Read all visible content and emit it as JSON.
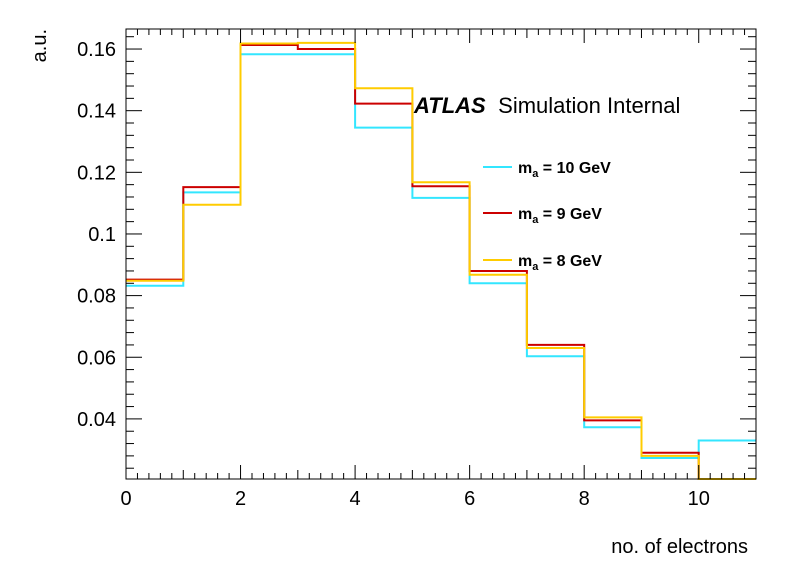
{
  "chart_data": {
    "type": "line",
    "style": "step-histogram",
    "xlabel": "no. of electrons",
    "ylabel": "a.u.",
    "xlim": [
      0,
      11
    ],
    "ylim": [
      0.0205,
      0.1665
    ],
    "x_bin_edges": [
      0,
      1,
      2,
      3,
      4,
      5,
      6,
      7,
      8,
      9,
      10,
      11
    ],
    "x_ticks": [
      0,
      2,
      4,
      6,
      8,
      10
    ],
    "x_tick_labels": [
      "0",
      "2",
      "4",
      "6",
      "8",
      "10"
    ],
    "y_ticks": [
      0.04,
      0.06,
      0.08,
      0.1,
      0.12,
      0.14,
      0.16
    ],
    "y_tick_labels": [
      "0.04",
      "0.06",
      "0.08",
      "0.1",
      "0.12",
      "0.14",
      "0.16"
    ],
    "grid": false,
    "legend_position": "right",
    "annotation": {
      "atlas": "ATLAS",
      "rest": "Simulation Internal"
    },
    "series": [
      {
        "name": "m_a = 10 GeV",
        "label_main": "m",
        "label_sub": "a",
        "label_rest": " = 10 GeV",
        "color": "#33e6ff",
        "values": [
          0.0832,
          0.1135,
          0.1583,
          0.1583,
          0.1345,
          0.1117,
          0.084,
          0.0603,
          0.0373,
          0.0273,
          0.033
        ]
      },
      {
        "name": "m_a = 9 GeV",
        "label_main": "m",
        "label_sub": "a",
        "label_rest": " = 9 GeV",
        "color": "#cc0000",
        "values": [
          0.0852,
          0.1152,
          0.1613,
          0.16,
          0.1423,
          0.1155,
          0.088,
          0.064,
          0.0395,
          0.029,
          0.0
        ]
      },
      {
        "name": "m_a = 8 GeV",
        "label_main": "m",
        "label_sub": "a",
        "label_rest": " = 8 GeV",
        "color": "#ffcc00",
        "values": [
          0.0848,
          0.1095,
          0.1618,
          0.162,
          0.1473,
          0.1168,
          0.0868,
          0.063,
          0.0405,
          0.028,
          0.0
        ]
      }
    ]
  }
}
